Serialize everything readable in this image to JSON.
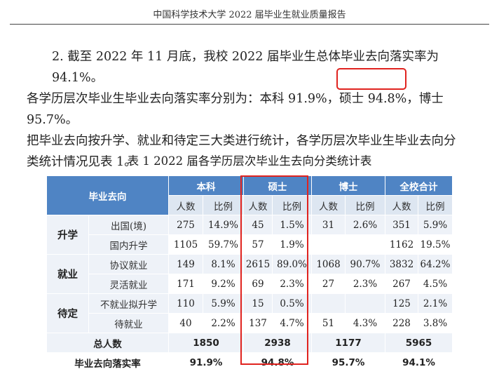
{
  "header": "中国科学技术大学 2022 届毕业生就业质量报告",
  "paragraph": {
    "line1": "2. 截至 2022 年 11 月底，我校 2022 届毕业生总体毕业去向落实率为 94.1%。",
    "line2": "各学历层次毕业生毕业去向落实率分别为：本科 91.9%，硕士 94.8%，博士 95.7%。",
    "line3": "把毕业去向按升学、就业和待定三大类进行统计，各学历层次毕业生毕业去向分",
    "line4": "类统计情况见表 1。"
  },
  "caption": "表 1   2022 届各学历层次毕业生去向分类统计表",
  "table": {
    "col_header": "毕业去向",
    "groups": [
      "本科",
      "硕士",
      "博士",
      "全校合计"
    ],
    "sub_headers": [
      "人数",
      "比例"
    ],
    "categories": [
      "升学",
      "就业",
      "待定"
    ],
    "rows": [
      {
        "label": "出国(境)",
        "cells": [
          "275",
          "14.9%",
          "45",
          "1.5%",
          "31",
          "2.6%",
          "351",
          "5.9%"
        ]
      },
      {
        "label": "国内升学",
        "cells": [
          "1105",
          "59.7%",
          "57",
          "1.9%",
          "",
          "",
          "1162",
          "19.5%"
        ]
      },
      {
        "label": "协议就业",
        "cells": [
          "149",
          "8.1%",
          "2615",
          "89.0%",
          "1068",
          "90.7%",
          "3832",
          "64.2%"
        ]
      },
      {
        "label": "灵活就业",
        "cells": [
          "171",
          "9.2%",
          "69",
          "2.3%",
          "27",
          "2.3%",
          "267",
          "4.5%"
        ]
      },
      {
        "label": "不就业拟升学",
        "cells": [
          "110",
          "5.9%",
          "15",
          "0.5%",
          "",
          "",
          "125",
          "2.1%"
        ]
      },
      {
        "label": "待就业",
        "cells": [
          "40",
          "2.2%",
          "137",
          "4.7%",
          "51",
          "4.3%",
          "228",
          "3.8%"
        ]
      }
    ],
    "total_label": "总人数",
    "totals": [
      "1850",
      "2938",
      "1177",
      "5965"
    ],
    "rate_label": "毕业去向落实率",
    "rates": [
      "91.9%",
      "94.8%",
      "95.7%",
      "94.1%"
    ]
  },
  "highlight_color": "#e0231f",
  "header_color": "#4f84c4"
}
